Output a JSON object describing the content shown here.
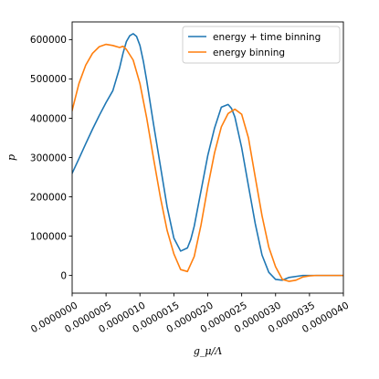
{
  "chart_data": {
    "type": "line",
    "title": "",
    "xlabel": "g_μ/Λ",
    "ylabel": "p",
    "xlim": [
      0,
      4e-06
    ],
    "ylim": [
      -45000,
      645000
    ],
    "grid": false,
    "legend_position": "top-right",
    "x_ticks": [
      "0.0000000",
      "0.0000005",
      "0.0000010",
      "0.0000015",
      "0.0000020",
      "0.0000025",
      "0.0000030",
      "0.0000035",
      "0.0000040"
    ],
    "y_ticks": [
      "0",
      "100000",
      "200000",
      "300000",
      "400000",
      "500000",
      "600000"
    ],
    "series": [
      {
        "name": "energy + time binning",
        "color": "#1f77b4",
        "x": [
          0,
          1e-07,
          2e-07,
          3e-07,
          4e-07,
          5e-07,
          6e-07,
          7e-07,
          7.5e-07,
          8e-07,
          8.5e-07,
          9e-07,
          9.5e-07,
          1e-06,
          1.05e-06,
          1.1e-06,
          1.2e-06,
          1.3e-06,
          1.4e-06,
          1.5e-06,
          1.6e-06,
          1.7e-06,
          1.75e-06,
          1.8e-06,
          1.9e-06,
          2e-06,
          2.1e-06,
          2.2e-06,
          2.3e-06,
          2.35e-06,
          2.4e-06,
          2.5e-06,
          2.6e-06,
          2.7e-06,
          2.8e-06,
          2.9e-06,
          3e-06,
          3.1e-06,
          3.2e-06,
          3.4e-06,
          3.6e-06,
          3.8e-06,
          4e-06
        ],
        "y": [
          260000,
          297000,
          335000,
          372000,
          407000,
          440000,
          470000,
          528000,
          565000,
          595000,
          610000,
          615000,
          608000,
          585000,
          545000,
          495000,
          385000,
          280000,
          175000,
          95000,
          62000,
          70000,
          92000,
          125000,
          215000,
          305000,
          375000,
          428000,
          435000,
          425000,
          403000,
          325000,
          228000,
          132000,
          52000,
          8000,
          -10000,
          -12000,
          -5000,
          0,
          0,
          0,
          0
        ]
      },
      {
        "name": "energy binning",
        "color": "#ff7f0e",
        "x": [
          0,
          1e-07,
          2e-07,
          3e-07,
          4e-07,
          5e-07,
          6e-07,
          7e-07,
          7.5e-07,
          8e-07,
          9e-07,
          1e-06,
          1.1e-06,
          1.2e-06,
          1.3e-06,
          1.4e-06,
          1.5e-06,
          1.6e-06,
          1.7e-06,
          1.8e-06,
          1.9e-06,
          2e-06,
          2.1e-06,
          2.2e-06,
          2.3e-06,
          2.4e-06,
          2.5e-06,
          2.6e-06,
          2.7e-06,
          2.8e-06,
          2.9e-06,
          3e-06,
          3.1e-06,
          3.2e-06,
          3.3e-06,
          3.4e-06,
          3.5e-06,
          3.6e-06,
          3.8e-06,
          4e-06
        ],
        "y": [
          420000,
          488000,
          535000,
          565000,
          582000,
          588000,
          585000,
          580000,
          583000,
          575000,
          548000,
          488000,
          400000,
          298000,
          200000,
          115000,
          55000,
          15000,
          10000,
          48000,
          128000,
          225000,
          312000,
          378000,
          412000,
          423000,
          410000,
          350000,
          250000,
          152000,
          72000,
          22000,
          -10000,
          -15000,
          -12000,
          -4000,
          -1000,
          0,
          0,
          0
        ]
      }
    ]
  }
}
